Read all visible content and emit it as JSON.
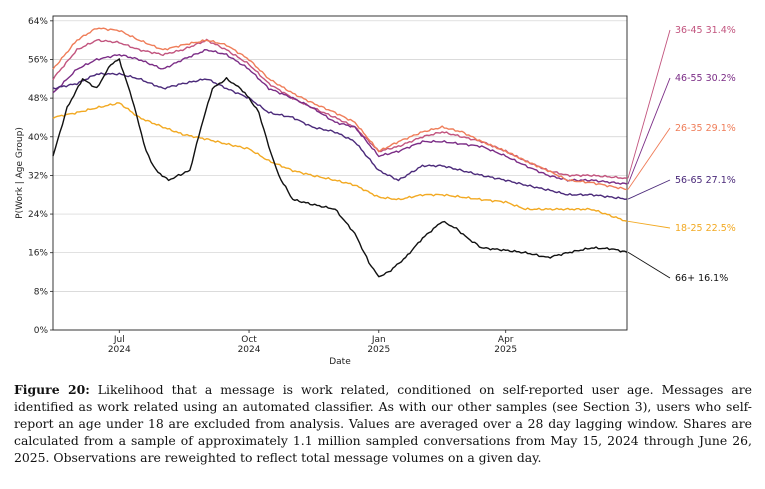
{
  "chart_data": {
    "type": "line",
    "xlabel": "Date",
    "ylabel": "P(Work | Age Group)",
    "ylim": [
      0,
      65
    ],
    "xlim": [
      "2024-05-15",
      "2025-06-26"
    ],
    "yticks": [
      {
        "value": 0,
        "label": "0%"
      },
      {
        "value": 8,
        "label": "8%"
      },
      {
        "value": 16,
        "label": "16%"
      },
      {
        "value": 24,
        "label": "24%"
      },
      {
        "value": 32,
        "label": "32%"
      },
      {
        "value": 40,
        "label": "40%"
      },
      {
        "value": 48,
        "label": "48%"
      },
      {
        "value": 56,
        "label": "56%"
      },
      {
        "value": 64,
        "label": "64%"
      }
    ],
    "xticks": [
      {
        "date": "2024-07-01",
        "month": "Jul",
        "year": "2024"
      },
      {
        "date": "2024-10-01",
        "month": "Oct",
        "year": "2024"
      },
      {
        "date": "2025-01-01",
        "month": "Jan",
        "year": "2025"
      },
      {
        "date": "2025-04-01",
        "month": "Apr",
        "year": "2025"
      }
    ],
    "grid": "horizontal",
    "legend": "end-of-line labels (right)",
    "series": [
      {
        "name": "36-45",
        "end_label": "36-45  31.4%",
        "color": "#c2547e",
        "points": [
          [
            "2024-05-15",
            52
          ],
          [
            "2024-06-01",
            58
          ],
          [
            "2024-06-15",
            60
          ],
          [
            "2024-07-01",
            59.5
          ],
          [
            "2024-07-15",
            58
          ],
          [
            "2024-08-01",
            57
          ],
          [
            "2024-08-15",
            58
          ],
          [
            "2024-09-01",
            60
          ],
          [
            "2024-09-15",
            58
          ],
          [
            "2024-10-01",
            55
          ],
          [
            "2024-10-15",
            51
          ],
          [
            "2024-11-01",
            48
          ],
          [
            "2024-11-15",
            46
          ],
          [
            "2024-12-01",
            44
          ],
          [
            "2024-12-15",
            42
          ],
          [
            "2025-01-01",
            37
          ],
          [
            "2025-01-15",
            38
          ],
          [
            "2025-02-01",
            40
          ],
          [
            "2025-02-15",
            41
          ],
          [
            "2025-03-01",
            40
          ],
          [
            "2025-03-15",
            39
          ],
          [
            "2025-04-01",
            37
          ],
          [
            "2025-04-15",
            35
          ],
          [
            "2025-05-01",
            33
          ],
          [
            "2025-05-15",
            32
          ],
          [
            "2025-06-01",
            32
          ],
          [
            "2025-06-26",
            31.4
          ]
        ]
      },
      {
        "name": "46-55",
        "end_label": "46-55  30.2%",
        "color": "#7b2d86",
        "points": [
          [
            "2024-05-15",
            49
          ],
          [
            "2024-06-01",
            54
          ],
          [
            "2024-06-15",
            56
          ],
          [
            "2024-07-01",
            57
          ],
          [
            "2024-07-15",
            56
          ],
          [
            "2024-08-01",
            54
          ],
          [
            "2024-08-15",
            56
          ],
          [
            "2024-09-01",
            58
          ],
          [
            "2024-09-15",
            57
          ],
          [
            "2024-10-01",
            54
          ],
          [
            "2024-10-15",
            50
          ],
          [
            "2024-11-01",
            48
          ],
          [
            "2024-11-15",
            46
          ],
          [
            "2024-12-01",
            43
          ],
          [
            "2024-12-15",
            42
          ],
          [
            "2025-01-01",
            36
          ],
          [
            "2025-01-15",
            37
          ],
          [
            "2025-02-01",
            39
          ],
          [
            "2025-02-15",
            39
          ],
          [
            "2025-03-01",
            38.5
          ],
          [
            "2025-03-15",
            38
          ],
          [
            "2025-04-01",
            36
          ],
          [
            "2025-04-15",
            34
          ],
          [
            "2025-05-01",
            32
          ],
          [
            "2025-05-15",
            31
          ],
          [
            "2025-06-01",
            31
          ],
          [
            "2025-06-26",
            30.2
          ]
        ]
      },
      {
        "name": "26-35",
        "end_label": "26-35  29.1%",
        "color": "#ef7d59",
        "points": [
          [
            "2024-05-15",
            54
          ],
          [
            "2024-06-01",
            60
          ],
          [
            "2024-06-15",
            62.5
          ],
          [
            "2024-07-01",
            62
          ],
          [
            "2024-07-15",
            60
          ],
          [
            "2024-08-01",
            58
          ],
          [
            "2024-08-15",
            59
          ],
          [
            "2024-09-01",
            60
          ],
          [
            "2024-09-15",
            59
          ],
          [
            "2024-10-01",
            56
          ],
          [
            "2024-10-15",
            52
          ],
          [
            "2024-11-01",
            49
          ],
          [
            "2024-11-15",
            47
          ],
          [
            "2024-12-01",
            45
          ],
          [
            "2024-12-15",
            43
          ],
          [
            "2025-01-01",
            37
          ],
          [
            "2025-01-15",
            39
          ],
          [
            "2025-02-01",
            41
          ],
          [
            "2025-02-15",
            42
          ],
          [
            "2025-03-01",
            41
          ],
          [
            "2025-03-15",
            39
          ],
          [
            "2025-04-01",
            37
          ],
          [
            "2025-04-15",
            35
          ],
          [
            "2025-05-01",
            33
          ],
          [
            "2025-05-15",
            31
          ],
          [
            "2025-06-01",
            30.5
          ],
          [
            "2025-06-26",
            29.1
          ]
        ]
      },
      {
        "name": "56-65",
        "end_label": "56-65  27.1%",
        "color": "#4b2a7a",
        "points": [
          [
            "2024-05-15",
            50
          ],
          [
            "2024-06-01",
            51
          ],
          [
            "2024-06-15",
            53
          ],
          [
            "2024-07-01",
            53
          ],
          [
            "2024-07-15",
            52
          ],
          [
            "2024-08-01",
            50
          ],
          [
            "2024-08-15",
            51
          ],
          [
            "2024-09-01",
            52
          ],
          [
            "2024-09-15",
            50
          ],
          [
            "2024-10-01",
            48
          ],
          [
            "2024-10-15",
            45
          ],
          [
            "2024-11-01",
            44
          ],
          [
            "2024-11-15",
            42
          ],
          [
            "2024-12-01",
            41
          ],
          [
            "2024-12-15",
            39
          ],
          [
            "2025-01-01",
            33
          ],
          [
            "2025-01-15",
            31
          ],
          [
            "2025-02-01",
            34
          ],
          [
            "2025-02-15",
            34
          ],
          [
            "2025-03-01",
            33
          ],
          [
            "2025-03-15",
            32
          ],
          [
            "2025-04-01",
            31
          ],
          [
            "2025-04-15",
            30
          ],
          [
            "2025-05-01",
            29
          ],
          [
            "2025-05-15",
            28
          ],
          [
            "2025-06-01",
            28
          ],
          [
            "2025-06-26",
            27.1
          ]
        ]
      },
      {
        "name": "18-25",
        "end_label": "18-25  22.5%",
        "color": "#f2a922",
        "points": [
          [
            "2024-05-15",
            44
          ],
          [
            "2024-06-01",
            45
          ],
          [
            "2024-06-15",
            46
          ],
          [
            "2024-07-01",
            47
          ],
          [
            "2024-07-15",
            44
          ],
          [
            "2024-08-01",
            42
          ],
          [
            "2024-08-15",
            40.5
          ],
          [
            "2024-09-01",
            39.5
          ],
          [
            "2024-09-15",
            38.5
          ],
          [
            "2024-10-01",
            37.5
          ],
          [
            "2024-10-15",
            35
          ],
          [
            "2024-11-01",
            33
          ],
          [
            "2024-11-15",
            32
          ],
          [
            "2024-12-01",
            31
          ],
          [
            "2024-12-15",
            30
          ],
          [
            "2025-01-01",
            27.5
          ],
          [
            "2025-01-15",
            27
          ],
          [
            "2025-02-01",
            28
          ],
          [
            "2025-02-15",
            28
          ],
          [
            "2025-03-01",
            27.5
          ],
          [
            "2025-03-15",
            27
          ],
          [
            "2025-04-01",
            26.5
          ],
          [
            "2025-04-15",
            25
          ],
          [
            "2025-05-01",
            25
          ],
          [
            "2025-05-15",
            25
          ],
          [
            "2025-06-01",
            25
          ],
          [
            "2025-06-26",
            22.5
          ]
        ]
      },
      {
        "name": "66+",
        "end_label": "66+  16.1%",
        "color": "#111111",
        "points": [
          [
            "2024-05-15",
            36
          ],
          [
            "2024-05-25",
            46
          ],
          [
            "2024-06-05",
            52
          ],
          [
            "2024-06-15",
            50
          ],
          [
            "2024-06-25",
            55
          ],
          [
            "2024-07-01",
            56
          ],
          [
            "2024-07-10",
            48
          ],
          [
            "2024-07-20",
            37
          ],
          [
            "2024-07-27",
            33
          ],
          [
            "2024-08-05",
            31
          ],
          [
            "2024-08-12",
            32
          ],
          [
            "2024-08-20",
            33
          ],
          [
            "2024-08-28",
            42
          ],
          [
            "2024-09-05",
            50
          ],
          [
            "2024-09-15",
            52
          ],
          [
            "2024-09-25",
            50
          ],
          [
            "2024-10-01",
            48
          ],
          [
            "2024-10-08",
            45
          ],
          [
            "2024-10-15",
            38
          ],
          [
            "2024-10-22",
            32
          ],
          [
            "2024-11-01",
            27
          ],
          [
            "2024-11-15",
            26
          ],
          [
            "2024-12-01",
            25
          ],
          [
            "2024-12-15",
            20
          ],
          [
            "2024-12-25",
            14
          ],
          [
            "2025-01-01",
            11
          ],
          [
            "2025-01-08",
            12
          ],
          [
            "2025-01-20",
            15
          ],
          [
            "2025-02-01",
            19
          ],
          [
            "2025-02-15",
            22.5
          ],
          [
            "2025-02-25",
            21
          ],
          [
            "2025-03-05",
            19
          ],
          [
            "2025-03-15",
            17
          ],
          [
            "2025-04-01",
            16.5
          ],
          [
            "2025-04-15",
            16
          ],
          [
            "2025-05-01",
            15
          ],
          [
            "2025-05-15",
            16
          ],
          [
            "2025-06-01",
            17
          ],
          [
            "2025-06-15",
            16.8
          ],
          [
            "2025-06-26",
            16.1
          ]
        ]
      }
    ]
  },
  "caption": {
    "label": "Figure 20:",
    "text": "Likelihood that a message is work related, conditioned on self-reported user age. Messages are identified as work related using an automated classifier. As with our other samples (see Section 3), users who self-report an age under 18 are excluded from analysis. Values are averaged over a 28 day lagging window. Shares are calculated from a sample of approximately 1.1 million sampled conversations from May 15, 2024 through June 26, 2025. Observations are reweighted to reflect total message volumes on a given day."
  }
}
